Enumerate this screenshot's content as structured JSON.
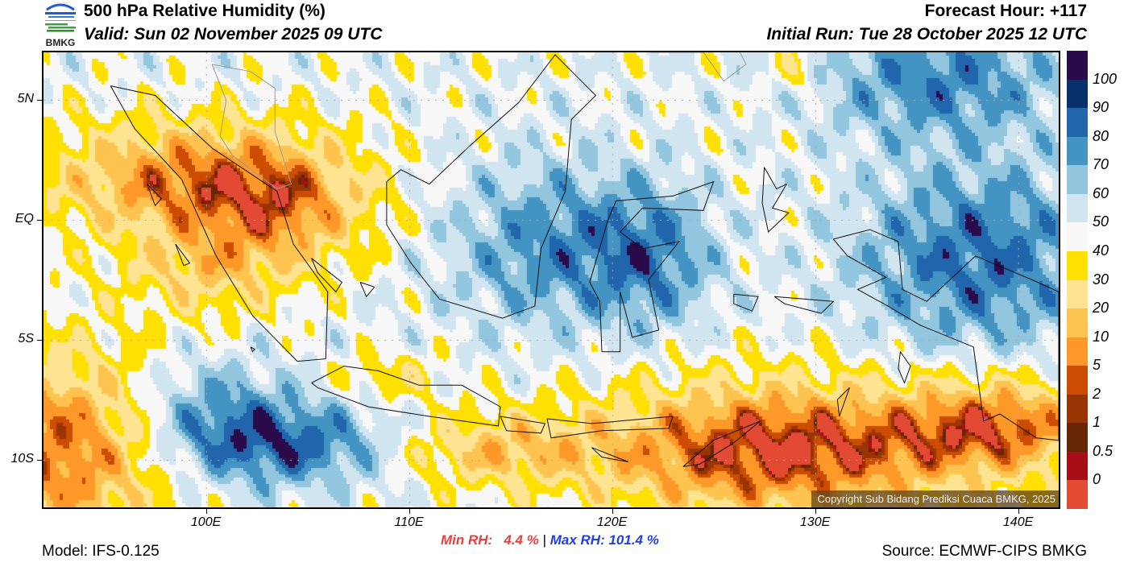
{
  "header": {
    "logo_text": "BMKG",
    "title": "500 hPa Relative Humidity (%)",
    "valid": "Valid: Sun 02 November 2025 09 UTC",
    "forecast_hour": "Forecast Hour: +117",
    "initial_run": "Initial Run: Tue 28 October 2025 12 UTC"
  },
  "map": {
    "variable": "500 hPa Relative Humidity",
    "units": "%",
    "lon_range": [
      92,
      142
    ],
    "lat_range": [
      -12,
      7
    ],
    "lon_ticks": [
      {
        "value": 100,
        "label": "100E"
      },
      {
        "value": 110,
        "label": "110E"
      },
      {
        "value": 120,
        "label": "120E"
      },
      {
        "value": 130,
        "label": "130E"
      },
      {
        "value": 140,
        "label": "140E"
      }
    ],
    "lat_ticks": [
      {
        "value": 5,
        "label": "5N"
      },
      {
        "value": 0,
        "label": "EQ"
      },
      {
        "value": -5,
        "label": "5S"
      },
      {
        "value": -10,
        "label": "10S"
      }
    ],
    "gridlines": "dotted",
    "copyright": "Copyright Sub Bidang Prediksi Cuaca BMKG, 2025",
    "field_regions": [
      {
        "name": "Andaman Sea / N Sumatra offshore",
        "rh_bin": "50-60"
      },
      {
        "name": "Central Sumatra & Malay Peninsula",
        "rh_bin": "10-30"
      },
      {
        "name": "Indian Ocean SW of Sumatra",
        "rh_bin": "10-20"
      },
      {
        "name": "Indian Ocean S of Java",
        "rh_bin": "80-100"
      },
      {
        "name": "Borneo & Sulawesi",
        "rh_bin": "70-90"
      },
      {
        "name": "Papua & W Pacific",
        "rh_bin": "90-100"
      },
      {
        "name": "Java Sea",
        "rh_bin": "50-60"
      },
      {
        "name": "Timor & Arafura Sea",
        "rh_bin": "5-20"
      },
      {
        "name": "Nusa Tenggara south",
        "rh_bin": "30-50"
      }
    ]
  },
  "colorbar": {
    "bins": [
      {
        "color": "#2a0a4a"
      },
      {
        "label": "100",
        "color": "#08306b"
      },
      {
        "label": "90",
        "color": "#2166ac"
      },
      {
        "label": "80",
        "color": "#4393c3"
      },
      {
        "label": "70",
        "color": "#92c5de"
      },
      {
        "label": "60",
        "color": "#d1e5f0"
      },
      {
        "label": "50",
        "color": "#f7f7f7"
      },
      {
        "label": "40",
        "color": "#ffe000"
      },
      {
        "label": "30",
        "color": "#fee391"
      },
      {
        "label": "20",
        "color": "#fec44f"
      },
      {
        "label": "10",
        "color": "#fe9929"
      },
      {
        "label": "5",
        "color": "#cc4c02"
      },
      {
        "label": "2",
        "color": "#993404"
      },
      {
        "label": "1",
        "color": "#662506"
      },
      {
        "label": "0.5",
        "color": "#a50f15"
      },
      {
        "label": "0",
        "color": "#e34a33"
      }
    ]
  },
  "stats": {
    "min_label": "Min RH:   4.4 %",
    "separator": " | ",
    "max_label": "Max RH: 101.4 %",
    "min_color": "#e8403e",
    "max_color": "#2040e0"
  },
  "footer": {
    "model": "Model: IFS-0.125",
    "source": "Source: ECMWF-CIPS BMKG"
  }
}
